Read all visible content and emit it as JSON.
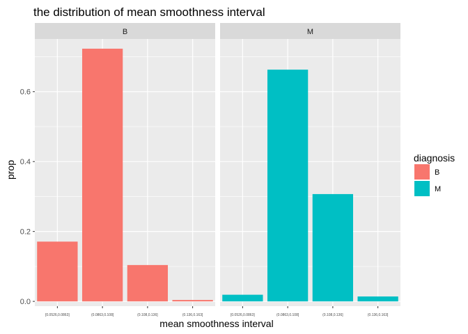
{
  "chart_data": {
    "type": "bar",
    "title": "the distribution of mean smoothness interval",
    "xlabel": "mean smoothness interval",
    "ylabel": "prop",
    "ylim": [
      -0.0137,
      0.7508
    ],
    "yticks": [
      0.0,
      0.2,
      0.4,
      0.6
    ],
    "ytick_labels": [
      "0.0",
      "0.2",
      "0.4",
      "0.6"
    ],
    "categories": [
      "[0.0526,0.0863]",
      "(0.0863,0.108]",
      "(0.108,0.136]",
      "(0.136,0.163]"
    ],
    "panels": [
      {
        "name": "B",
        "color": "#F8766D",
        "values": [
          0.171,
          0.723,
          0.104,
          0.004
        ]
      },
      {
        "name": "M",
        "color": "#00BFC4",
        "values": [
          0.019,
          0.663,
          0.307,
          0.014
        ]
      }
    ],
    "legend": {
      "title": "diagnosis",
      "position": "right",
      "items": [
        {
          "label": "B",
          "color": "#F8766D"
        },
        {
          "label": "M",
          "color": "#00BFC4"
        }
      ]
    },
    "grid": true,
    "panel_background": "#EBEBEB",
    "strip_background": "#D9D9D9"
  }
}
